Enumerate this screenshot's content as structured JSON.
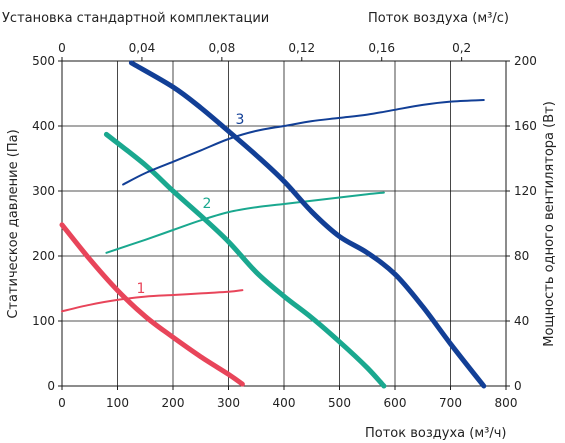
{
  "chart_data": {
    "type": "line",
    "title": "Установка стандартной комплектации",
    "x_bottom": {
      "label": "Поток воздуха (м³/ч)",
      "range": [
        0,
        800
      ],
      "ticks": [
        0,
        100,
        200,
        300,
        400,
        500,
        600,
        700,
        800
      ]
    },
    "x_top": {
      "label": "Поток воздуха (м³/с)",
      "range": [
        0,
        0.2222
      ],
      "ticks": [
        0,
        0.04,
        0.08,
        0.12,
        0.16,
        0.2
      ],
      "tick_labels": [
        "0",
        "0,04",
        "0,08",
        "0,12",
        "0,16",
        "0,2"
      ]
    },
    "y_left": {
      "label": "Статическое давление (Па)",
      "range": [
        0,
        500
      ],
      "ticks": [
        0,
        100,
        200,
        300,
        400,
        500
      ]
    },
    "y_right": {
      "label": "Мощность одного вентилятора (Вт)",
      "range": [
        0,
        200
      ],
      "ticks": [
        0,
        40,
        80,
        120,
        160,
        200
      ]
    },
    "grid": true,
    "series": [
      {
        "id": "1",
        "label": "1",
        "color": "#e8455a",
        "pressure": {
          "x": [
            0,
            50,
            100,
            150,
            200,
            250,
            300,
            325
          ],
          "y": [
            248,
            195,
            147,
            107,
            75,
            45,
            18,
            3
          ]
        },
        "power": {
          "x": [
            0,
            50,
            100,
            150,
            200,
            250,
            300,
            325
          ],
          "y": [
            46,
            50,
            53,
            55,
            56,
            57,
            58,
            59
          ]
        }
      },
      {
        "id": "2",
        "label": "2",
        "color": "#1aa88f",
        "pressure": {
          "x": [
            80,
            150,
            200,
            250,
            300,
            350,
            400,
            450,
            500,
            550,
            580
          ],
          "y": [
            387,
            340,
            300,
            262,
            222,
            175,
            138,
            105,
            68,
            28,
            0
          ]
        },
        "power": {
          "x": [
            80,
            150,
            200,
            250,
            300,
            350,
            400,
            450,
            500,
            550,
            580
          ],
          "y": [
            82,
            90,
            96,
            102,
            107,
            110,
            112,
            114,
            116,
            118,
            119
          ]
        }
      },
      {
        "id": "3",
        "label": "3",
        "color": "#123f96",
        "pressure": {
          "x": [
            125,
            200,
            250,
            300,
            350,
            400,
            450,
            500,
            550,
            600,
            650,
            700,
            760
          ],
          "y": [
            497,
            460,
            428,
            392,
            355,
            315,
            268,
            230,
            205,
            172,
            122,
            65,
            0
          ]
        },
        "power": {
          "x": [
            110,
            150,
            200,
            250,
            300,
            350,
            400,
            450,
            500,
            550,
            600,
            650,
            700,
            760
          ],
          "y": [
            124,
            131,
            138,
            145,
            152,
            157,
            160,
            163,
            165,
            167,
            170,
            173,
            175,
            176
          ]
        }
      }
    ]
  }
}
